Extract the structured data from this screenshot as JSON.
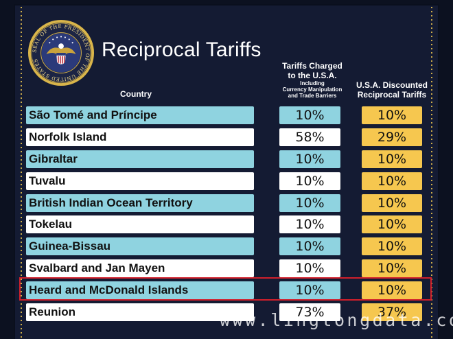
{
  "header": {
    "title": "Reciprocal Tariffs",
    "seal_text": "SEAL OF THE PRESIDENT OF THE UNITED STATES"
  },
  "columns": {
    "country": "Country",
    "charged_line1": "Tariffs Charged",
    "charged_line2": "to the U.S.A.",
    "charged_note1": "Including",
    "charged_note2": "Currency Manipulation",
    "charged_note3": "and Trade Barriers",
    "discount_line1": "U.S.A. Discounted",
    "discount_line2": "Reciprocal Tariffs"
  },
  "rows": [
    {
      "country": "São Tomé and Príncipe",
      "charged": "10%",
      "discounted": "10%"
    },
    {
      "country": "Norfolk Island",
      "charged": "58%",
      "discounted": "29%"
    },
    {
      "country": "Gibraltar",
      "charged": "10%",
      "discounted": "10%"
    },
    {
      "country": "Tuvalu",
      "charged": "10%",
      "discounted": "10%"
    },
    {
      "country": "British Indian Ocean Territory",
      "charged": "10%",
      "discounted": "10%"
    },
    {
      "country": "Tokelau",
      "charged": "10%",
      "discounted": "10%"
    },
    {
      "country": "Guinea-Bissau",
      "charged": "10%",
      "discounted": "10%"
    },
    {
      "country": "Svalbard and Jan Mayen",
      "charged": "10%",
      "discounted": "10%"
    },
    {
      "country": "Heard and McDonald Islands",
      "charged": "10%",
      "discounted": "10%"
    },
    {
      "country": "Reunion",
      "charged": "73%",
      "discounted": "37%"
    }
  ],
  "watermark": "www.lingtongdata.com",
  "colors": {
    "background": "#141b33",
    "row_blue": "#8fd3e0",
    "row_white": "#ffffff",
    "discount_yellow": "#f6c74f",
    "highlight_red": "#d21f2b",
    "seal_gold": "#d9b54a"
  }
}
